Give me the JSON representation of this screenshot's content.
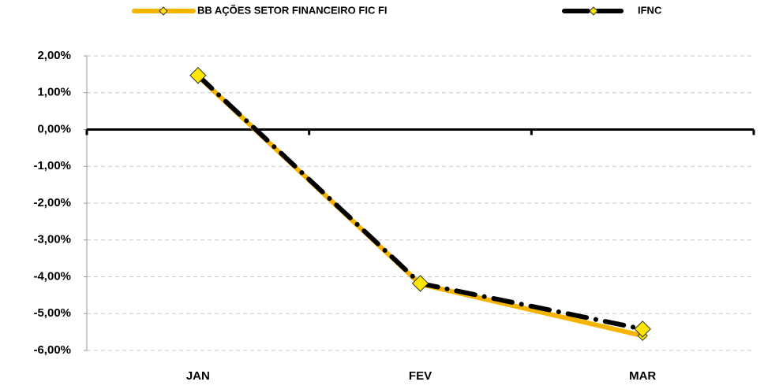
{
  "chart_data": {
    "type": "line",
    "categories": [
      "JAN",
      "FEV",
      "MAR"
    ],
    "series": [
      {
        "name": "BB AÇÕES SETOR FINANCEIRO FIC FI",
        "color": "#f5b400",
        "marker_color": "#ffe600",
        "line_style": "solid",
        "values": [
          1.45,
          -4.2,
          -5.6
        ]
      },
      {
        "name": "IFNC",
        "color": "#000000",
        "marker_color": "#ffe600",
        "line_style": "dashdot",
        "values": [
          1.47,
          -4.18,
          -5.42
        ]
      }
    ],
    "ylim": [
      -6,
      2
    ],
    "yticks": [
      {
        "value": -6,
        "label": "-6,00%"
      },
      {
        "value": -5,
        "label": "-5,00%"
      },
      {
        "value": -4,
        "label": "-4,00%"
      },
      {
        "value": -3,
        "label": "-3,00%"
      },
      {
        "value": -2,
        "label": "-2,00%"
      },
      {
        "value": -1,
        "label": "-1,00%"
      },
      {
        "value": 0,
        "label": "0,00%"
      },
      {
        "value": 1,
        "label": "1,00%"
      },
      {
        "value": 2,
        "label": "2,00%"
      }
    ],
    "grid": true,
    "legend": "top"
  }
}
